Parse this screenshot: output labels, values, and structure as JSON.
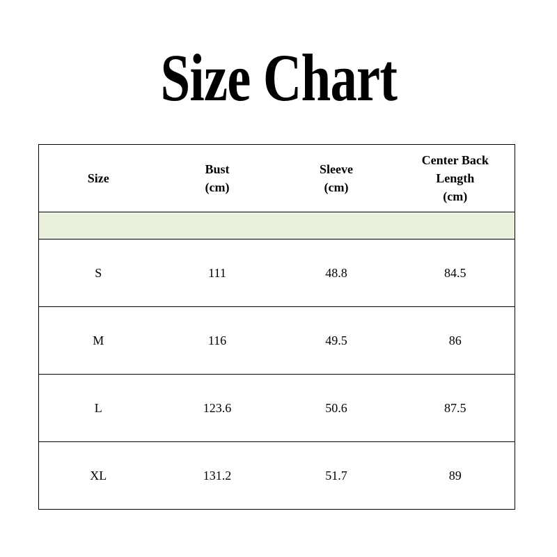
{
  "title": "Size Chart",
  "colors": {
    "band": "#e9f0dd",
    "border": "#000000"
  },
  "headers": [
    {
      "line1": "Size",
      "line2": "",
      "line3": ""
    },
    {
      "line1": "Bust",
      "line2": "(cm)",
      "line3": ""
    },
    {
      "line1": "Sleeve",
      "line2": "(cm)",
      "line3": ""
    },
    {
      "line1": "Center Back",
      "line2": "Length",
      "line3": "(cm)"
    }
  ],
  "rows": [
    [
      "S",
      "111",
      "48.8",
      "84.5"
    ],
    [
      "M",
      "116",
      "49.5",
      "86"
    ],
    [
      "L",
      "123.6",
      "50.6",
      "87.5"
    ],
    [
      "XL",
      "131.2",
      "51.7",
      "89"
    ]
  ]
}
